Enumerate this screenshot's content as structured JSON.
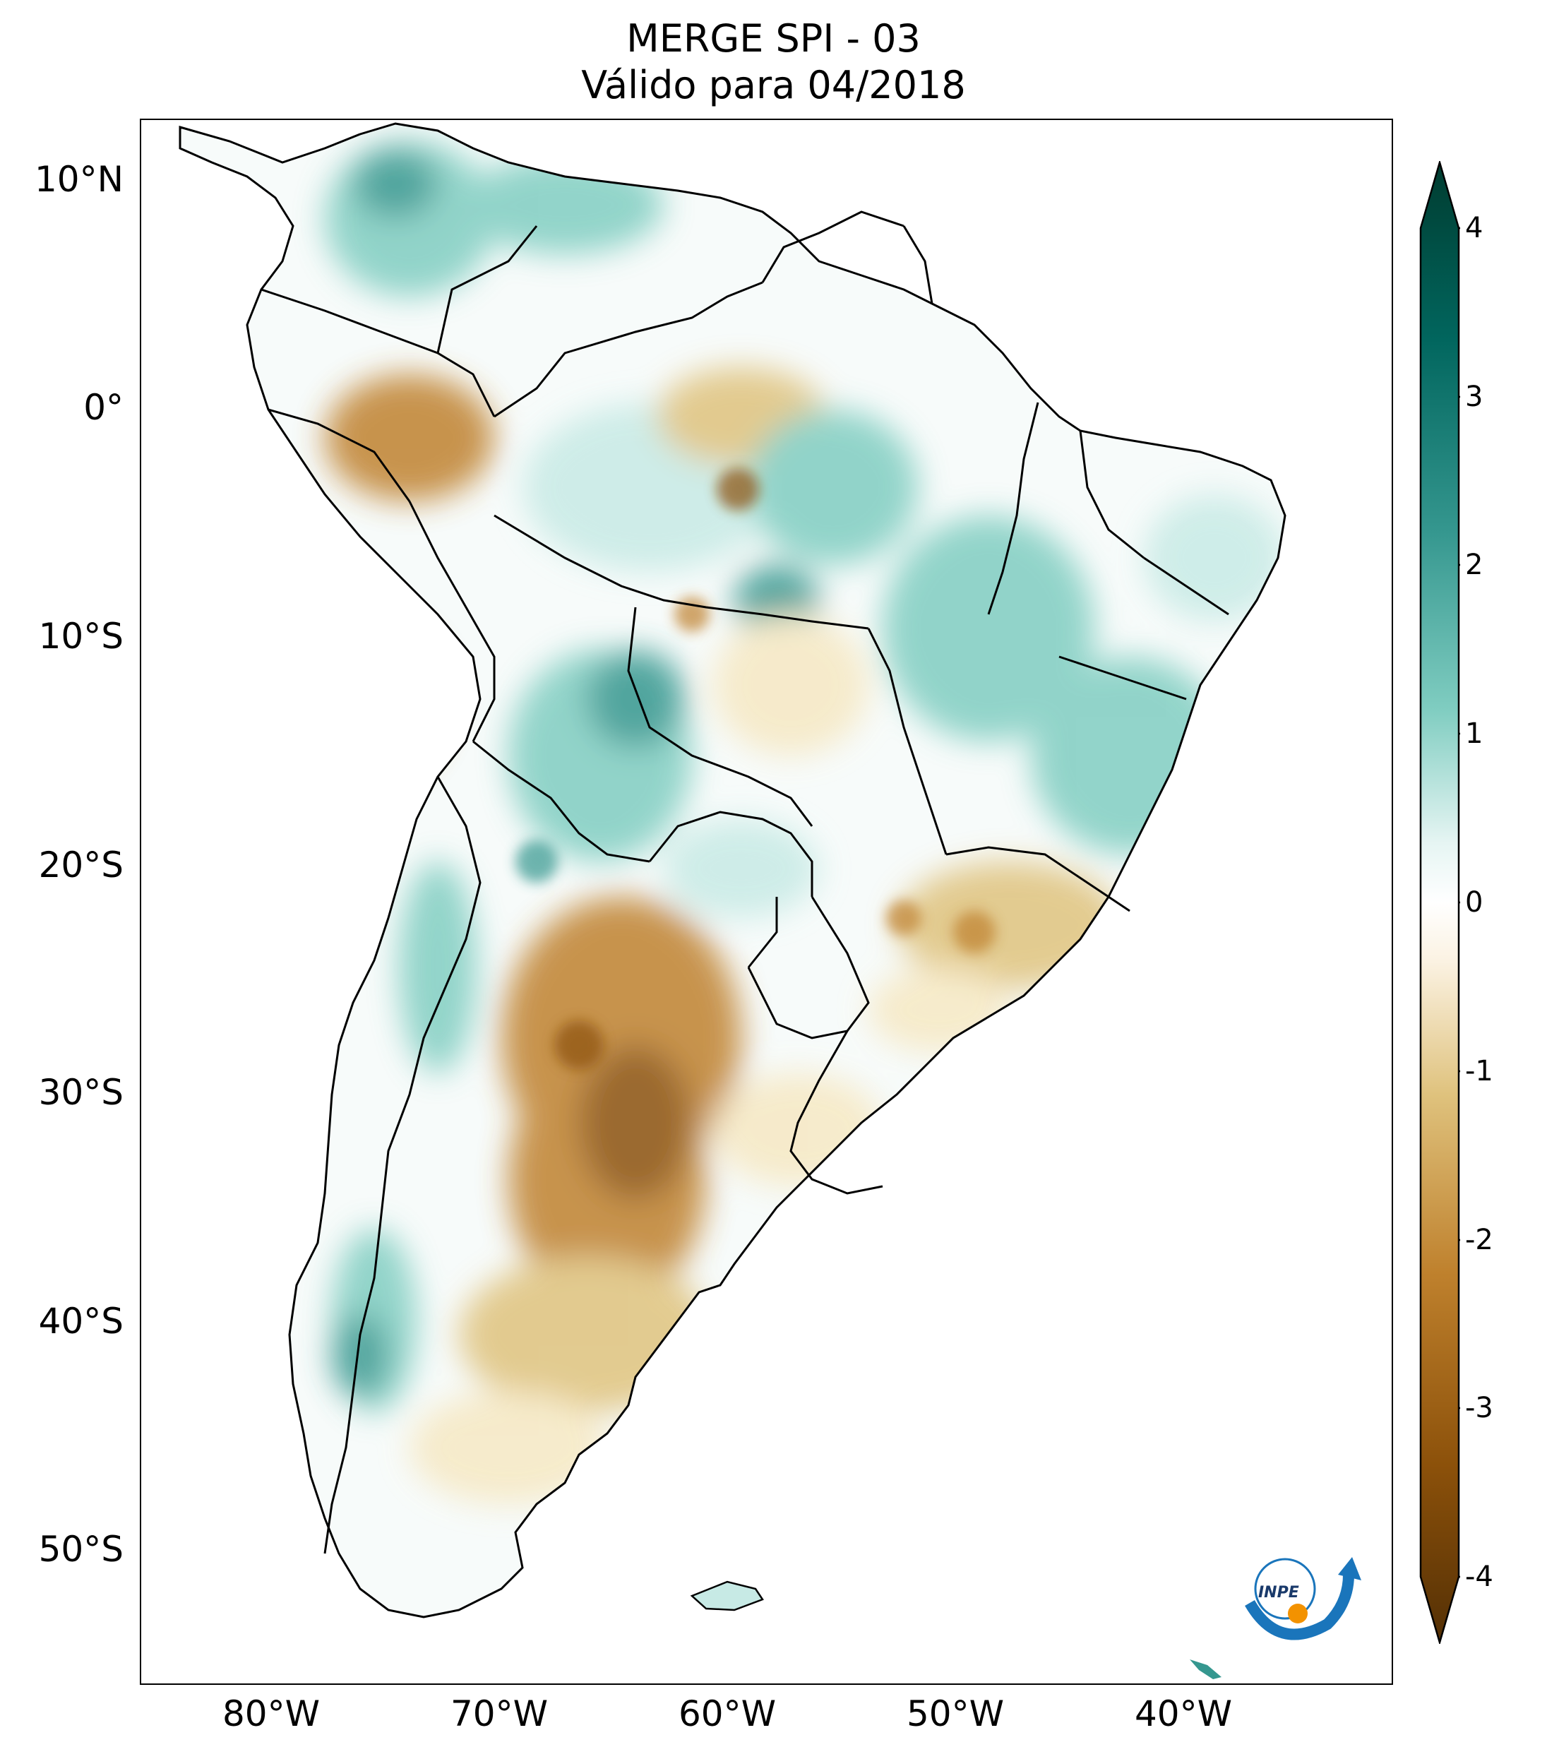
{
  "title": {
    "line1": "MERGE   SPI - 03",
    "line2": "Válido para 04/2018"
  },
  "map": {
    "lat_labels": [
      "10°N",
      "0°",
      "10°S",
      "20°S",
      "30°S",
      "40°S",
      "50°S"
    ],
    "lon_labels": [
      "80°W",
      "70°W",
      "60°W",
      "50°W",
      "40°W"
    ],
    "extent_lon": [
      -85,
      -30
    ],
    "extent_lat": [
      -56,
      13
    ],
    "palette": {
      "dry_extreme": "#543005",
      "dry_strong": "#8c510a",
      "dry_mod": "#bf812d",
      "dry_mild": "#dfc27d",
      "dry_light": "#f6e8c3",
      "neutral": "#ffffff",
      "wet_light": "#c7eae5",
      "wet_mild": "#80cdc1",
      "wet_mod": "#35978f",
      "wet_strong": "#01665e",
      "wet_extreme": "#003c30"
    }
  },
  "colorbar": {
    "ticks": [
      "4",
      "3",
      "2",
      "1",
      "0",
      "-1",
      "-2",
      "-3",
      "-4"
    ]
  },
  "logo": {
    "text": "INPE",
    "arc_color": "#1a75bb",
    "dot_color": "#f39200"
  }
}
